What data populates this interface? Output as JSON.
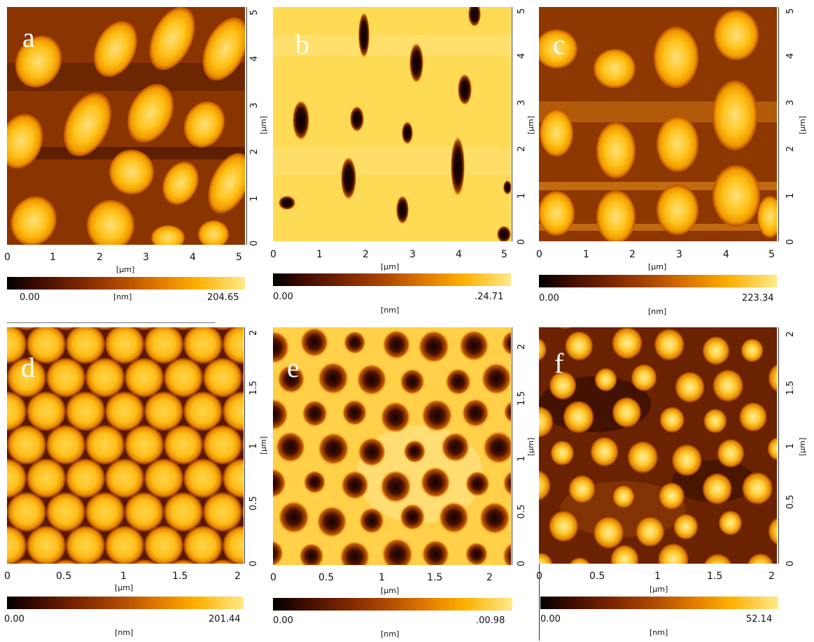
{
  "axis_unit": "[μm]",
  "colorbar_unit": "[nm]",
  "colors": {
    "bg": "#5a1a00",
    "mid": "#b34a00",
    "bright": "#ffc21a",
    "pale": "#ffe49a",
    "dark": "#120300"
  },
  "panels": [
    {
      "id": "a",
      "label": "a",
      "x_ticks": [
        "0",
        "1",
        "2",
        "3",
        "4",
        "5"
      ],
      "y_ticks": [
        "0",
        "1",
        "2",
        "3",
        "4",
        "5"
      ],
      "cbar_min": "0.00",
      "cbar_max": "204.65"
    },
    {
      "id": "b",
      "label": "b",
      "x_ticks": [
        "0",
        "1",
        "2",
        "3",
        "4",
        "5"
      ],
      "y_ticks": [
        "0",
        "1",
        "2",
        "3",
        "4",
        "5"
      ],
      "cbar_min": "0.00",
      "cbar_max": ".24.71"
    },
    {
      "id": "c",
      "label": "c",
      "x_ticks": [
        "0",
        "1",
        "2",
        "3",
        "4",
        "5"
      ],
      "y_ticks": [
        "0",
        "1",
        "2",
        "3",
        "4",
        "5"
      ],
      "cbar_min": "0.00",
      "cbar_max": "223.34"
    },
    {
      "id": "d",
      "label": "d",
      "x_ticks": [
        "0",
        "0.5",
        "1",
        "1.5",
        "2"
      ],
      "y_ticks": [
        "0",
        "0.5",
        "1",
        "1.5",
        "2"
      ],
      "cbar_min": "0.00",
      "cbar_max": "201.44"
    },
    {
      "id": "e",
      "label": "e",
      "x_ticks": [
        "0",
        "0.5",
        "1",
        "1.5",
        "2"
      ],
      "y_ticks": [
        "0",
        "0.5",
        "1",
        "1.5",
        "2"
      ],
      "cbar_min": "0.00",
      "cbar_max": ".00.98"
    },
    {
      "id": "f",
      "label": "f",
      "x_ticks": [
        "0",
        "0.5",
        "1",
        "1.5",
        "2"
      ],
      "y_ticks": [
        "0",
        "0.5",
        "1",
        "1.5",
        "2"
      ],
      "cbar_min": "0.00",
      "cbar_max": "52.14"
    }
  ]
}
